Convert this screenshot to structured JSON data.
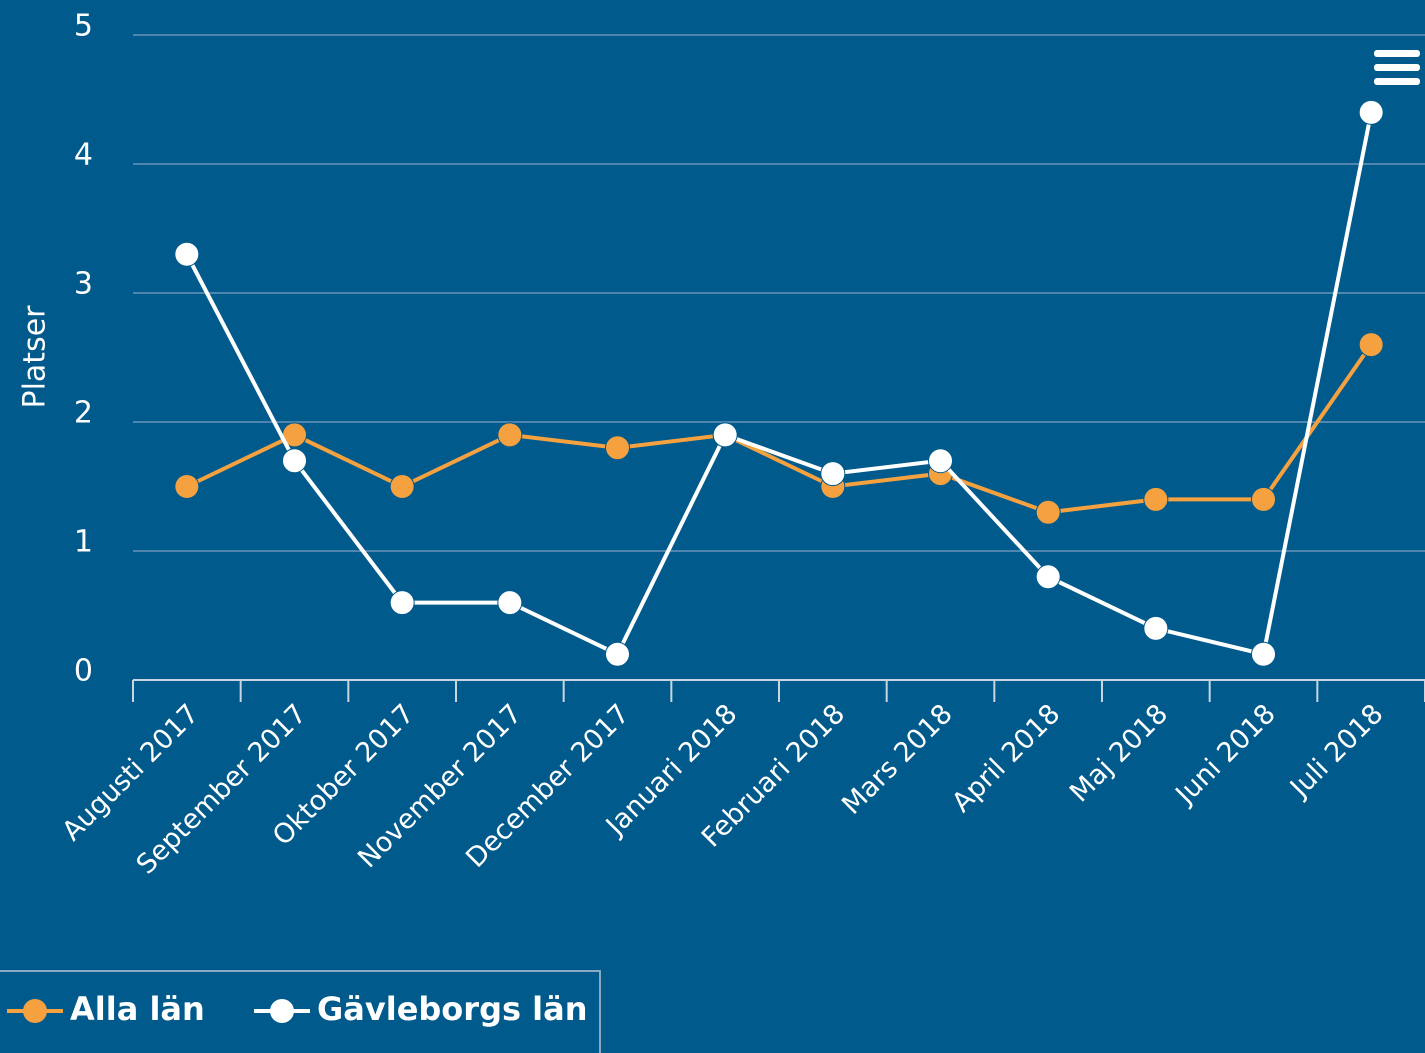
{
  "chart_data": {
    "type": "line",
    "y_label": "Platser",
    "categories": [
      "Augusti 2017",
      "September 2017",
      "Oktober 2017",
      "November 2017",
      "December 2017",
      "Januari 2018",
      "Februari 2018",
      "Mars 2018",
      "April 2018",
      "Maj 2018",
      "Juni 2018",
      "Juli 2018"
    ],
    "series": [
      {
        "name": "Alla län",
        "color": "#f5a140",
        "values": [
          1.5,
          1.9,
          1.5,
          1.9,
          1.8,
          1.9,
          1.5,
          1.6,
          1.3,
          1.4,
          1.4,
          2.6
        ]
      },
      {
        "name": "Gävleborgs län",
        "color": "#ffffff",
        "values": [
          3.3,
          1.7,
          0.6,
          0.6,
          0.2,
          1.9,
          1.6,
          1.7,
          0.8,
          0.4,
          0.2,
          4.4
        ]
      }
    ],
    "ylim": [
      0,
      5
    ],
    "yticks": [
      0,
      1,
      2,
      3,
      4,
      5
    ],
    "grid": true,
    "legend": "bottom-left"
  }
}
